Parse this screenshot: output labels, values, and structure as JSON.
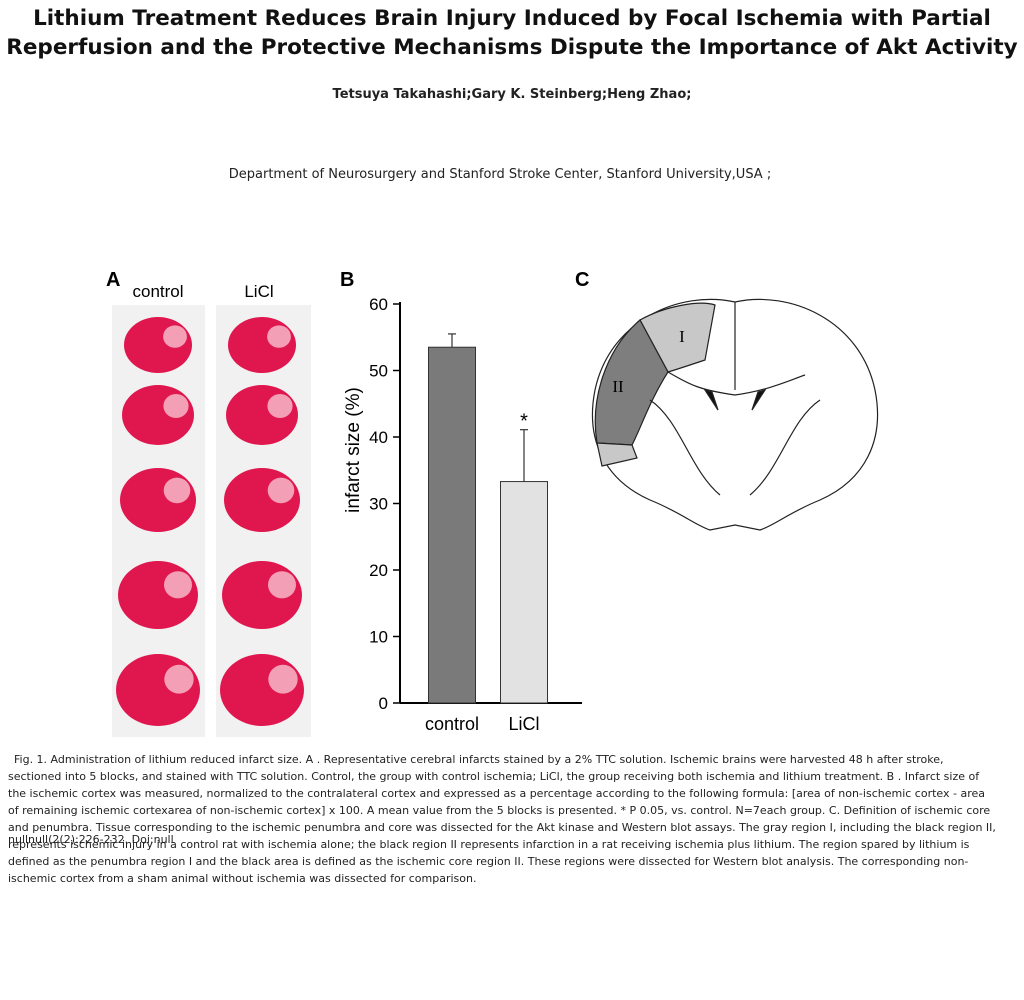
{
  "header": {
    "title": "Lithium Treatment Reduces Brain Injury Induced by Focal Ischemia with Partial Reperfusion and the Protective Mechanisms Dispute the Importance of Akt Activity",
    "authors": "Tetsuya Takahashi;Gary K. Steinberg;Heng Zhao;",
    "affiliation": "Department of Neurosurgery and Stanford Stroke Center, Stanford University,USA ;"
  },
  "figure": {
    "panel_a": {
      "label": "A",
      "columns": [
        "control",
        "LiCl"
      ]
    },
    "panel_b": {
      "label": "B"
    },
    "panel_c": {
      "label": "C",
      "regions": [
        "I",
        "II"
      ]
    }
  },
  "chart_data": {
    "type": "bar",
    "categories": [
      "control",
      "LiCl"
    ],
    "values": [
      53.5,
      33.3
    ],
    "errors": [
      2,
      7.8
    ],
    "colors": [
      "#7a7a7a",
      "#e2e2e2"
    ],
    "ylabel": "infarct size (%)",
    "ylim": [
      0,
      60
    ],
    "yticks": [
      0,
      10,
      20,
      30,
      40,
      50,
      60
    ],
    "annotations": [
      {
        "text": "*",
        "category": 1
      }
    ]
  },
  "caption": "Fig. 1.    Administration of lithium reduced infarct size. A . Representative cerebral infarcts stained by a 2% TTC solution. Ischemic brains were harvested 48 h after stroke, sectioned into 5 blocks, and stained with TTC solution. Control, the group with control ischemia; LiCl, the group receiving both ischemia and lithium treatment. B . Infarct size of the ischemic cortex was measured, normalized to the contralateral cortex and expressed as a percentage according to the following formula: [area of non-ischemic cortex - area of remaining ischemic cortexarea of non-ischemic cortex] x 100. A mean value from the 5 blocks is presented. *  P  0.05, vs. control. N=7each group. C.  Definition of ischemic core and penumbra. Tissue corresponding to the ischemic penumbra and core was dissected for the Akt kinase and Western blot assays. The gray region I, including the black region II, represents ischemic injury in a control rat with ischemia alone; the black region II represents infarction in a rat receiving ischemia plus lithium. The region spared by lithium is defined as the penumbra region I and the black area is defined as the ischemic core region II. These regions were dissected for Western blot analysis. The corresponding non-ischemic cortex from a sham animal without ischemia was dissected for comparison.",
  "citation": "nullnull(2(2):226-232. Doi:null"
}
